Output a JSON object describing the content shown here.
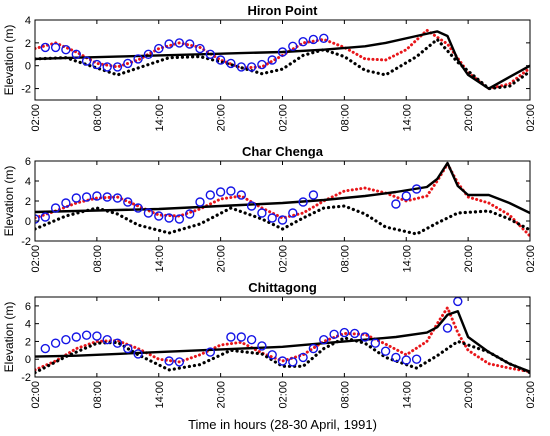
{
  "chart_data": [
    {
      "type": "line",
      "title": "Hiron Point",
      "ylabel": "Elevation (m)",
      "ylim": [
        -3,
        4
      ],
      "yticks": [
        -2,
        0,
        2,
        4
      ],
      "xtick_labels": [
        "02:00",
        "08:00",
        "14:00",
        "20:00",
        "02:00",
        "08:00",
        "14:00",
        "20:00",
        "02:00"
      ],
      "series": [
        {
          "style": "red-dotted",
          "x": [
            0,
            2,
            4,
            6,
            8,
            10,
            12,
            14,
            16,
            18,
            20,
            22,
            24,
            26,
            28,
            30,
            32,
            34,
            36,
            38,
            40,
            42,
            44,
            46,
            48
          ],
          "y": [
            1.5,
            2.0,
            1.2,
            0.2,
            -0.1,
            0.5,
            1.5,
            2.0,
            1.6,
            0.5,
            -0.2,
            -0.1,
            0.9,
            2.0,
            2.3,
            1.6,
            0.6,
            0.5,
            1.4,
            3.1,
            1.9,
            -0.6,
            -2.0,
            -1.6,
            -0.2
          ]
        },
        {
          "style": "black-solid",
          "x": [
            0,
            4,
            8,
            12,
            16,
            20,
            24,
            28,
            32,
            34,
            37,
            39,
            40,
            41,
            42,
            44,
            46,
            48
          ],
          "y": [
            0.6,
            0.7,
            0.8,
            0.9,
            1.0,
            1.1,
            1.2,
            1.4,
            1.7,
            2.0,
            2.6,
            3.0,
            2.6,
            0.5,
            -0.8,
            -2.0,
            -1.0,
            0.0
          ]
        },
        {
          "style": "black-dotted",
          "x": [
            0,
            3,
            6,
            8,
            10,
            13,
            16,
            19,
            22,
            24,
            26,
            28,
            30,
            32,
            34,
            37,
            39,
            41,
            44,
            46,
            48
          ],
          "y": [
            0.6,
            0.7,
            -0.2,
            -0.8,
            -0.2,
            0.7,
            0.8,
            0.1,
            -0.7,
            -0.3,
            0.9,
            1.4,
            0.8,
            -0.4,
            -0.8,
            0.8,
            2.3,
            0.3,
            -2.0,
            -1.8,
            -0.5
          ]
        },
        {
          "style": "blue-circle",
          "x": [
            1,
            2,
            3,
            4,
            5,
            6,
            7,
            8,
            9,
            10,
            11,
            12,
            13,
            14,
            15,
            16,
            17,
            18,
            19,
            20,
            21,
            22,
            23,
            24,
            25,
            26,
            27,
            28
          ],
          "y": [
            1.6,
            1.6,
            1.4,
            1.0,
            0.4,
            0.1,
            -0.1,
            -0.1,
            0.2,
            0.6,
            1.0,
            1.5,
            1.9,
            2.0,
            1.9,
            1.5,
            1.0,
            0.5,
            0.2,
            -0.1,
            -0.1,
            0.1,
            0.5,
            1.2,
            1.7,
            2.1,
            2.3,
            2.4
          ]
        }
      ]
    },
    {
      "type": "line",
      "title": "Char Chenga",
      "ylabel": "Elevation (m)",
      "ylim": [
        -2,
        6
      ],
      "yticks": [
        -2,
        0,
        2,
        4,
        6
      ],
      "xtick_labels": [
        "02:00",
        "08:00",
        "14:00",
        "20:00",
        "02:00",
        "08:00",
        "14:00",
        "20:00",
        "02:00"
      ],
      "series": [
        {
          "style": "red-dotted",
          "x": [
            0,
            2,
            4,
            6,
            8,
            10,
            12,
            14,
            16,
            18,
            20,
            22,
            24,
            26,
            28,
            30,
            32,
            34,
            36,
            38,
            39,
            40,
            41,
            42,
            44,
            46,
            48
          ],
          "y": [
            0.3,
            1.0,
            1.8,
            2.3,
            2.4,
            1.5,
            0.6,
            0.5,
            1.2,
            2.2,
            2.5,
            1.3,
            0.3,
            0.8,
            2.0,
            3.0,
            3.3,
            2.8,
            2.0,
            2.5,
            4.0,
            5.7,
            3.8,
            2.4,
            1.8,
            0.6,
            -1.5
          ]
        },
        {
          "style": "black-solid",
          "x": [
            0,
            4,
            8,
            12,
            16,
            20,
            24,
            28,
            32,
            35,
            38,
            39,
            40,
            41,
            42,
            44,
            46,
            48
          ],
          "y": [
            0.9,
            1.0,
            1.1,
            1.2,
            1.4,
            1.6,
            1.8,
            2.1,
            2.5,
            2.9,
            3.4,
            4.2,
            5.8,
            3.5,
            2.6,
            2.6,
            1.8,
            0.8
          ]
        },
        {
          "style": "black-dotted",
          "x": [
            0,
            3,
            6,
            8,
            10,
            13,
            16,
            19,
            22,
            24,
            26,
            28,
            30,
            32,
            34,
            37,
            39,
            41,
            44,
            46,
            48
          ],
          "y": [
            -0.8,
            0.5,
            1.3,
            0.7,
            -0.4,
            -1.2,
            -0.3,
            1.3,
            0.2,
            -0.8,
            0.3,
            1.3,
            1.5,
            0.7,
            -0.6,
            -1.3,
            -0.2,
            0.8,
            1.0,
            0.2,
            -0.9
          ]
        },
        {
          "style": "blue-circle",
          "x": [
            0,
            1,
            2,
            3,
            4,
            5,
            6,
            7,
            8,
            9,
            10,
            11,
            12,
            13,
            14,
            15,
            16,
            17,
            18,
            19,
            20,
            21,
            22,
            23,
            24,
            25,
            26,
            27,
            35,
            36,
            37
          ],
          "y": [
            0.2,
            0.4,
            1.3,
            1.8,
            2.3,
            2.4,
            2.5,
            2.4,
            2.3,
            1.9,
            1.3,
            0.8,
            0.5,
            0.3,
            0.2,
            0.7,
            1.9,
            2.6,
            2.9,
            3.0,
            2.6,
            1.5,
            0.8,
            0.3,
            0.1,
            0.8,
            1.9,
            2.6,
            1.7,
            2.5,
            3.2
          ]
        }
      ]
    },
    {
      "type": "line",
      "title": "Chittagong",
      "ylabel": "Elevation (m)",
      "ylim": [
        -2,
        7
      ],
      "yticks": [
        -2,
        0,
        2,
        4,
        6
      ],
      "xtick_labels": [
        "02:00",
        "08:00",
        "14:00",
        "20:00",
        "02:00",
        "08:00",
        "14:00",
        "20:00",
        "02:00"
      ],
      "series": [
        {
          "style": "red-dotted",
          "x": [
            0,
            2,
            4,
            6,
            8,
            10,
            12,
            14,
            16,
            18,
            20,
            22,
            24,
            26,
            28,
            30,
            32,
            34,
            36,
            38,
            39,
            40,
            41,
            42,
            44,
            46,
            48
          ],
          "y": [
            -1.2,
            -0.2,
            1.2,
            2.0,
            2.1,
            1.2,
            0.0,
            -0.3,
            0.5,
            1.6,
            1.9,
            0.7,
            -0.2,
            0.5,
            2.0,
            2.9,
            2.8,
            1.7,
            0.5,
            2.0,
            4.0,
            5.8,
            3.0,
            1.0,
            -0.5,
            -1.0,
            -1.4
          ]
        },
        {
          "style": "black-solid",
          "x": [
            0,
            4,
            8,
            12,
            16,
            20,
            24,
            28,
            32,
            35,
            38,
            39,
            40,
            41,
            42,
            44,
            46,
            48
          ],
          "y": [
            0.3,
            0.4,
            0.6,
            0.8,
            1.0,
            1.2,
            1.4,
            1.8,
            2.2,
            2.5,
            3.0,
            3.6,
            5.0,
            5.4,
            2.5,
            0.8,
            -0.5,
            -1.4
          ]
        },
        {
          "style": "black-dotted",
          "x": [
            0,
            3,
            6,
            8,
            10,
            13,
            16,
            19,
            22,
            24,
            26,
            28,
            30,
            32,
            34,
            37,
            39,
            41,
            44,
            46,
            48
          ],
          "y": [
            -1.5,
            0.3,
            1.8,
            1.9,
            0.5,
            -1.2,
            -0.6,
            1.0,
            0.6,
            -0.8,
            -0.8,
            1.2,
            2.4,
            1.8,
            0.2,
            -1.0,
            0.4,
            2.0,
            0.8,
            -0.5,
            -1.5
          ]
        },
        {
          "style": "blue-circle",
          "x": [
            1,
            2,
            3,
            4,
            5,
            6,
            7,
            8,
            9,
            10,
            13,
            14,
            17,
            19,
            20,
            21,
            22,
            23,
            24,
            25,
            26,
            27,
            28,
            29,
            30,
            31,
            32,
            33,
            34,
            35,
            36,
            37,
            40,
            41
          ],
          "y": [
            1.2,
            1.8,
            2.2,
            2.5,
            2.7,
            2.6,
            2.2,
            1.8,
            1.2,
            0.6,
            -0.2,
            -0.3,
            0.8,
            2.5,
            2.5,
            2.2,
            1.5,
            0.5,
            -0.2,
            -0.3,
            0.2,
            1.2,
            2.2,
            2.8,
            3.0,
            2.9,
            2.5,
            1.8,
            0.9,
            0.2,
            -0.1,
            0.0,
            3.5,
            6.5
          ]
        }
      ]
    }
  ],
  "figure": {
    "xlabel": "Time in hours (28-30 April, 1991)"
  }
}
